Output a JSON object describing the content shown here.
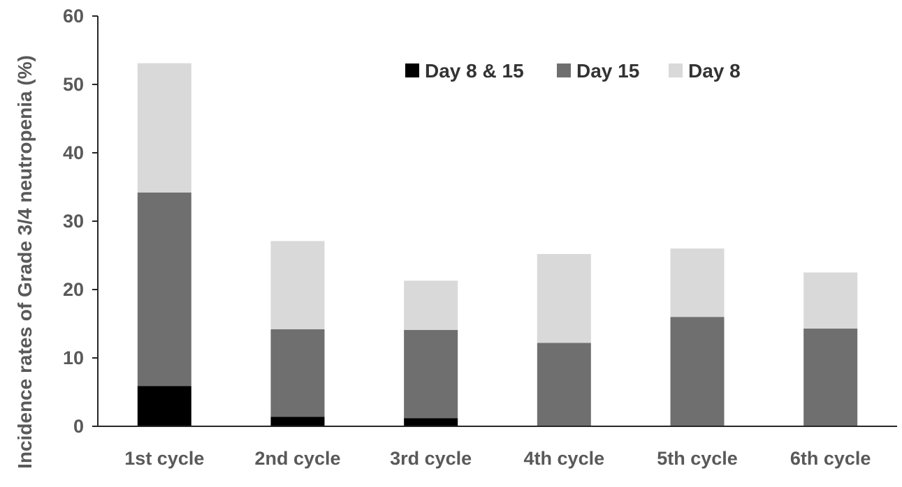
{
  "chart_data": {
    "type": "bar",
    "stacked": true,
    "title": "",
    "xlabel": "",
    "ylabel": "Incidence rates of Grade  3/4 neutropenia (%)",
    "ylim": [
      0,
      60
    ],
    "yticks": [
      0,
      10,
      20,
      30,
      40,
      50,
      60
    ],
    "grid": false,
    "legend_position": "top-right",
    "categories": [
      "1st cycle",
      "2nd cycle",
      "3rd cycle",
      "4th cycle",
      "5th cycle",
      "6th cycle"
    ],
    "series": [
      {
        "name": "Day 8 & 15",
        "color": "#000000",
        "values": [
          5.9,
          1.4,
          1.2,
          0,
          0,
          0
        ]
      },
      {
        "name": "Day 15",
        "color": "#6f6f6f",
        "values": [
          28.3,
          12.8,
          12.9,
          12.2,
          16.0,
          14.3
        ]
      },
      {
        "name": "Day 8",
        "color": "#d9d9d9",
        "values": [
          18.9,
          12.9,
          7.2,
          13.0,
          10.0,
          8.2
        ]
      }
    ]
  }
}
